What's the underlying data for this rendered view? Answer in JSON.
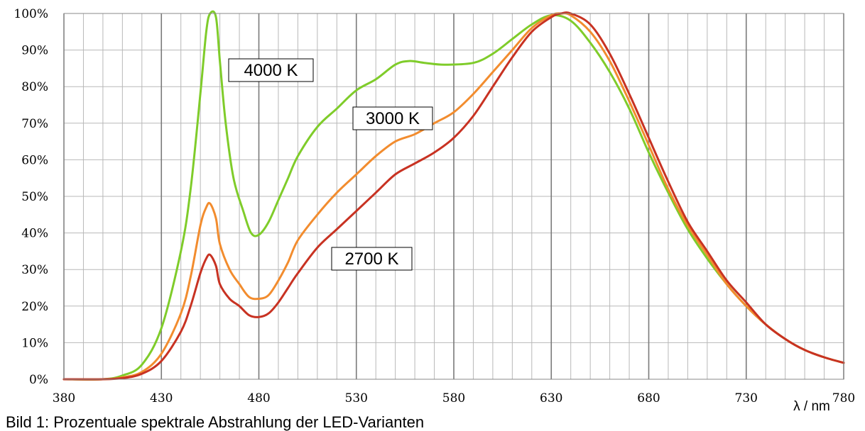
{
  "caption": "Bild 1: Prozentuale spektrale Abstrahlung der LED-Varianten",
  "chart_data": {
    "type": "line",
    "title": "",
    "xlabel": "λ / nm",
    "ylabel": "",
    "xlim": [
      380,
      780
    ],
    "ylim": [
      0,
      100
    ],
    "x_ticks": [
      "380",
      "430",
      "480",
      "530",
      "580",
      "630",
      "680",
      "730",
      "780"
    ],
    "y_ticks": [
      "0%",
      "10%",
      "20%",
      "30%",
      "40%",
      "50%",
      "60%",
      "70%",
      "80%",
      "90%",
      "100%"
    ],
    "grid": true,
    "series": [
      {
        "name": "4000 K",
        "color": "#7fcc2a",
        "points": [
          [
            380,
            0
          ],
          [
            400,
            0
          ],
          [
            410,
            1
          ],
          [
            420,
            4
          ],
          [
            430,
            14
          ],
          [
            440,
            35
          ],
          [
            445,
            52
          ],
          [
            450,
            78
          ],
          [
            453,
            95
          ],
          [
            455,
            100
          ],
          [
            458,
            99
          ],
          [
            460,
            87
          ],
          [
            463,
            70
          ],
          [
            467,
            55
          ],
          [
            472,
            46
          ],
          [
            476,
            40
          ],
          [
            480,
            39.5
          ],
          [
            485,
            43
          ],
          [
            490,
            49
          ],
          [
            495,
            55
          ],
          [
            500,
            61
          ],
          [
            510,
            69
          ],
          [
            520,
            74
          ],
          [
            530,
            79
          ],
          [
            540,
            82
          ],
          [
            550,
            86
          ],
          [
            557,
            87
          ],
          [
            565,
            86.5
          ],
          [
            575,
            86
          ],
          [
            590,
            86.5
          ],
          [
            600,
            89
          ],
          [
            610,
            93
          ],
          [
            620,
            97
          ],
          [
            630,
            99.5
          ],
          [
            640,
            98
          ],
          [
            650,
            92
          ],
          [
            660,
            84
          ],
          [
            670,
            74
          ],
          [
            680,
            62
          ],
          [
            690,
            51
          ],
          [
            700,
            41
          ],
          [
            710,
            33
          ],
          [
            720,
            26
          ],
          [
            730,
            20
          ],
          [
            740,
            15
          ],
          [
            750,
            11
          ],
          [
            760,
            8
          ],
          [
            770,
            6
          ],
          [
            780,
            4.5
          ]
        ]
      },
      {
        "name": "3000 K",
        "color": "#f28c2e",
        "points": [
          [
            380,
            0
          ],
          [
            400,
            0
          ],
          [
            410,
            0.5
          ],
          [
            420,
            2
          ],
          [
            430,
            7
          ],
          [
            440,
            18
          ],
          [
            445,
            28
          ],
          [
            450,
            42
          ],
          [
            453,
            47
          ],
          [
            455,
            48
          ],
          [
            458,
            44
          ],
          [
            460,
            37
          ],
          [
            465,
            30
          ],
          [
            470,
            26
          ],
          [
            475,
            22.5
          ],
          [
            480,
            22
          ],
          [
            485,
            23
          ],
          [
            490,
            27
          ],
          [
            495,
            32
          ],
          [
            500,
            38
          ],
          [
            510,
            45
          ],
          [
            520,
            51
          ],
          [
            530,
            56
          ],
          [
            540,
            61
          ],
          [
            550,
            65
          ],
          [
            560,
            67
          ],
          [
            570,
            70
          ],
          [
            580,
            73
          ],
          [
            590,
            78
          ],
          [
            600,
            84
          ],
          [
            610,
            90
          ],
          [
            620,
            96
          ],
          [
            630,
            99.5
          ],
          [
            635,
            100
          ],
          [
            640,
            99.5
          ],
          [
            650,
            95
          ],
          [
            660,
            87
          ],
          [
            670,
            76
          ],
          [
            680,
            64
          ],
          [
            690,
            52
          ],
          [
            700,
            42
          ],
          [
            710,
            34
          ],
          [
            720,
            26
          ],
          [
            730,
            20
          ],
          [
            740,
            15
          ],
          [
            750,
            11
          ],
          [
            760,
            8
          ],
          [
            770,
            6
          ],
          [
            780,
            4.5
          ]
        ]
      },
      {
        "name": "2700 K",
        "color": "#c83222",
        "points": [
          [
            380,
            0
          ],
          [
            400,
            0
          ],
          [
            410,
            0.3
          ],
          [
            420,
            1.5
          ],
          [
            430,
            5
          ],
          [
            440,
            13
          ],
          [
            445,
            20
          ],
          [
            450,
            29
          ],
          [
            453,
            33
          ],
          [
            455,
            34
          ],
          [
            458,
            31
          ],
          [
            460,
            26
          ],
          [
            465,
            22
          ],
          [
            470,
            20
          ],
          [
            475,
            17.5
          ],
          [
            480,
            17
          ],
          [
            485,
            18
          ],
          [
            490,
            21
          ],
          [
            495,
            25
          ],
          [
            500,
            29
          ],
          [
            510,
            36
          ],
          [
            520,
            41
          ],
          [
            530,
            46
          ],
          [
            540,
            51
          ],
          [
            550,
            56
          ],
          [
            560,
            59
          ],
          [
            570,
            62
          ],
          [
            580,
            66
          ],
          [
            590,
            72
          ],
          [
            600,
            80
          ],
          [
            610,
            88
          ],
          [
            620,
            95
          ],
          [
            630,
            99
          ],
          [
            635,
            100
          ],
          [
            640,
            100
          ],
          [
            650,
            97
          ],
          [
            660,
            89
          ],
          [
            670,
            78
          ],
          [
            680,
            66
          ],
          [
            690,
            54
          ],
          [
            700,
            43
          ],
          [
            710,
            35
          ],
          [
            720,
            27
          ],
          [
            730,
            21
          ],
          [
            740,
            15
          ],
          [
            750,
            11
          ],
          [
            760,
            8
          ],
          [
            770,
            6
          ],
          [
            780,
            4.5
          ]
        ]
      }
    ]
  }
}
